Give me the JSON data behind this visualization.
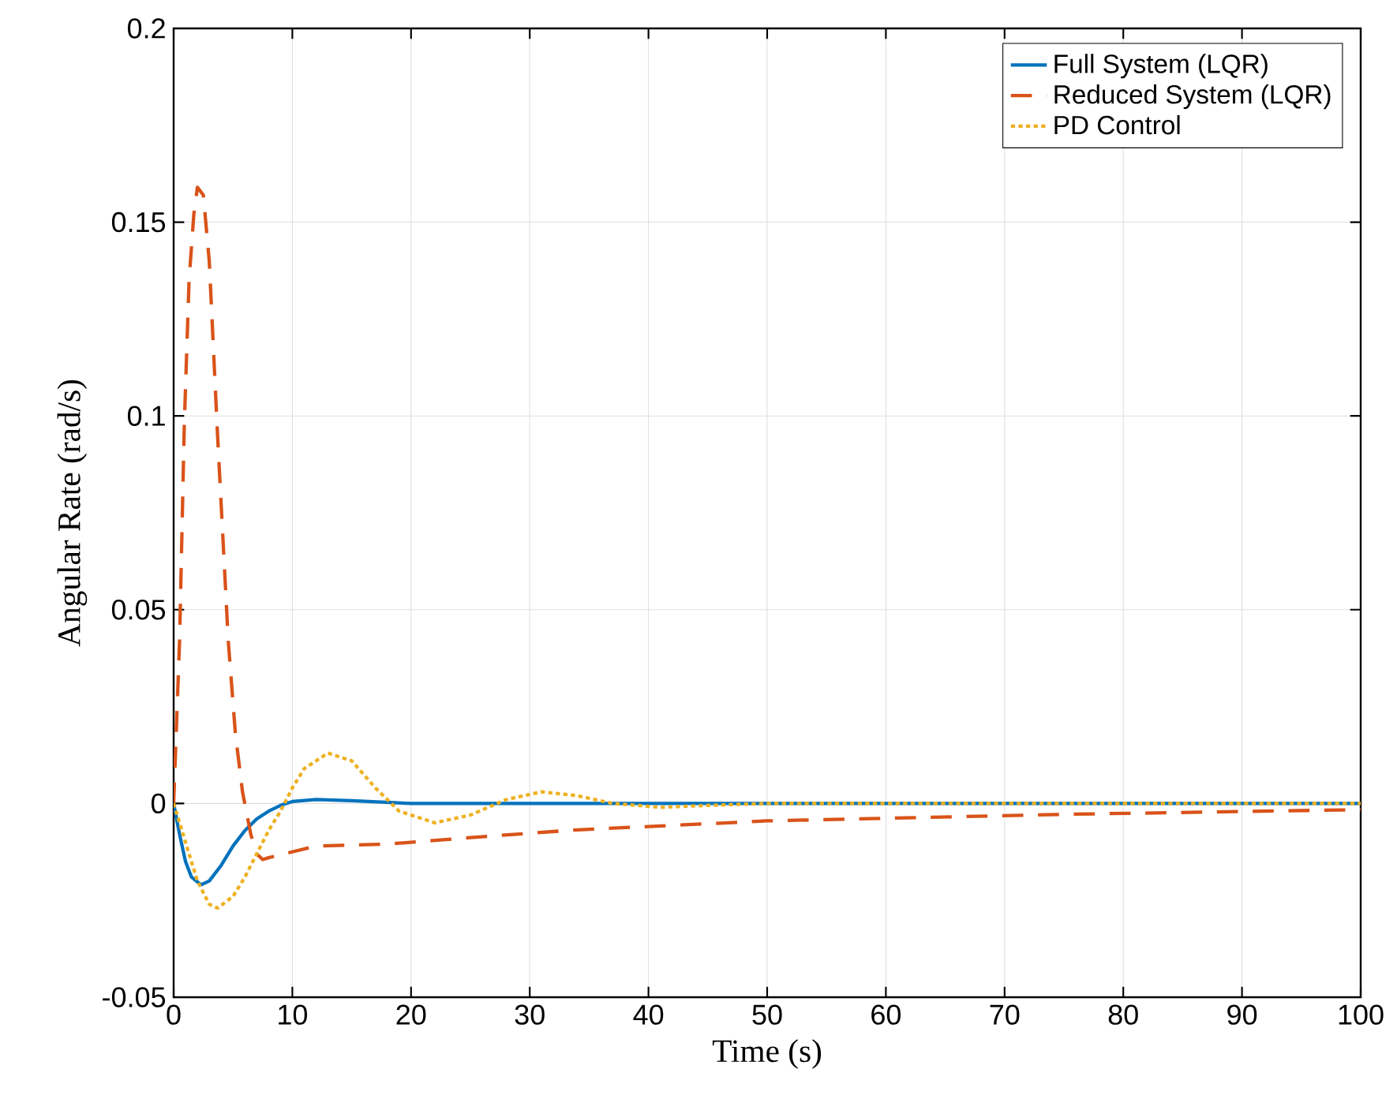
{
  "chart_data": {
    "type": "line",
    "xlabel": "Time (s)",
    "ylabel": "Angular Rate (rad/s)",
    "xlim": [
      0,
      100
    ],
    "ylim": [
      -0.05,
      0.2
    ],
    "xticks": [
      0,
      10,
      20,
      30,
      40,
      50,
      60,
      70,
      80,
      90,
      100
    ],
    "yticks": [
      -0.05,
      0,
      0.05,
      0.1,
      0.15,
      0.2
    ],
    "grid": true,
    "legend": "top right",
    "series": [
      {
        "name": "Full System (LQR)",
        "color": "#0072bd",
        "line_style": "solid",
        "x": [
          0,
          0.5,
          1,
          1.5,
          2.3,
          3,
          4,
          5,
          6,
          7,
          8,
          9,
          10,
          12,
          15,
          20,
          30,
          50,
          100
        ],
        "values": [
          0,
          -0.008,
          -0.015,
          -0.019,
          -0.021,
          -0.02,
          -0.016,
          -0.011,
          -0.007,
          -0.004,
          -0.002,
          -0.0005,
          0.0005,
          0.001,
          0.0007,
          0,
          0,
          0,
          0
        ]
      },
      {
        "name": "Reduced System (LQR)",
        "color": "#d95319",
        "line_style": "dashed",
        "x": [
          0,
          0.5,
          0.9,
          1.3,
          1.7,
          2,
          2.5,
          3,
          3.7,
          4.6,
          5.2,
          5.8,
          6.5,
          7,
          7.5,
          8,
          10,
          12,
          18,
          25,
          34,
          50,
          75,
          100
        ],
        "values": [
          0,
          0.042,
          0.098,
          0.135,
          0.152,
          0.159,
          0.157,
          0.14,
          0.095,
          0.042,
          0.018,
          0.003,
          -0.008,
          -0.013,
          -0.0145,
          -0.014,
          -0.0125,
          -0.011,
          -0.0105,
          -0.0088,
          -0.0068,
          -0.0045,
          -0.0028,
          -0.0016
        ]
      },
      {
        "name": "PD Control",
        "color": "#edb120",
        "line_style": "dotted",
        "x": [
          0,
          1,
          2,
          3,
          3.7,
          5,
          6,
          7,
          8,
          9,
          10,
          11,
          13,
          15,
          17,
          19,
          22,
          25,
          28,
          31,
          34,
          37,
          41,
          45,
          50,
          100
        ],
        "values": [
          0,
          -0.01,
          -0.02,
          -0.026,
          -0.027,
          -0.024,
          -0.019,
          -0.013,
          -0.007,
          -0.002,
          0.004,
          0.009,
          0.013,
          0.011,
          0.004,
          -0.002,
          -0.005,
          -0.003,
          0.001,
          0.003,
          0.002,
          0,
          -0.001,
          -0.0005,
          0,
          0
        ]
      }
    ]
  }
}
